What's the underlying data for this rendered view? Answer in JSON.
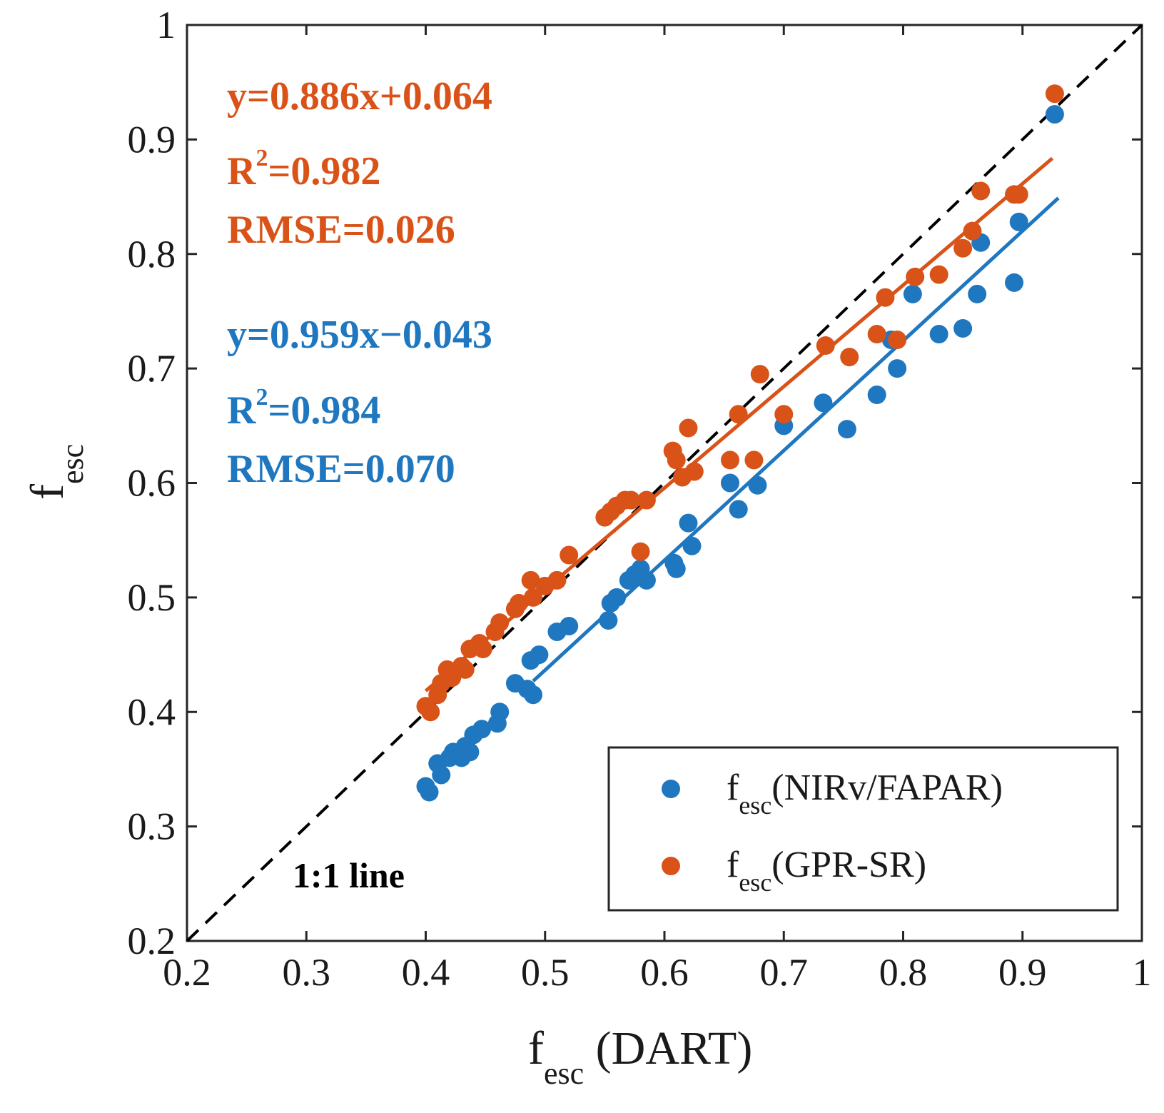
{
  "chart_data": {
    "type": "scatter",
    "xlabel": {
      "main": "f",
      "sub": "esc",
      "suffix": " (DART)"
    },
    "ylabel": {
      "main": "f",
      "sub": "esc"
    },
    "xlim": [
      0.2,
      1.0
    ],
    "ylim": [
      0.2,
      1.0
    ],
    "xticks": [
      0.2,
      0.3,
      0.4,
      0.5,
      0.6,
      0.7,
      0.8,
      0.9,
      1.0
    ],
    "yticks": [
      0.2,
      0.3,
      0.4,
      0.5,
      0.6,
      0.7,
      0.8,
      0.9,
      1.0
    ],
    "xtick_labels": [
      "0.2",
      "0.3",
      "0.4",
      "0.5",
      "0.6",
      "0.7",
      "0.8",
      "0.9",
      "1"
    ],
    "ytick_labels": [
      "0.2",
      "0.3",
      "0.4",
      "0.5",
      "0.6",
      "0.7",
      "0.8",
      "0.9",
      "1"
    ],
    "grid": false,
    "legend_position": "bottom-right",
    "reference_line": {
      "label": "1:1 line",
      "slope": 1,
      "intercept": 0
    },
    "series": [
      {
        "name": "NIRv/FAPAR",
        "legend_main": "f",
        "legend_sub": "esc",
        "legend_suffix": "(NIRv/FAPAR)",
        "color": "#1f77c0",
        "fit": {
          "slope": 0.959,
          "intercept": -0.043,
          "x_range": [
            0.49,
            0.93
          ]
        },
        "stats": {
          "equation": "y=0.959x−0.043",
          "r2_prefix": "R",
          "r2_sup": "2",
          "r2_value": "=0.984",
          "rmse": "RMSE=0.070"
        },
        "points": [
          [
            0.4,
            0.335
          ],
          [
            0.403,
            0.33
          ],
          [
            0.41,
            0.355
          ],
          [
            0.413,
            0.345
          ],
          [
            0.42,
            0.36
          ],
          [
            0.423,
            0.365
          ],
          [
            0.43,
            0.36
          ],
          [
            0.433,
            0.37
          ],
          [
            0.437,
            0.365
          ],
          [
            0.44,
            0.38
          ],
          [
            0.447,
            0.385
          ],
          [
            0.46,
            0.39
          ],
          [
            0.462,
            0.4
          ],
          [
            0.475,
            0.425
          ],
          [
            0.485,
            0.42
          ],
          [
            0.49,
            0.415
          ],
          [
            0.488,
            0.445
          ],
          [
            0.495,
            0.45
          ],
          [
            0.51,
            0.47
          ],
          [
            0.52,
            0.475
          ],
          [
            0.553,
            0.48
          ],
          [
            0.555,
            0.495
          ],
          [
            0.56,
            0.5
          ],
          [
            0.57,
            0.515
          ],
          [
            0.575,
            0.52
          ],
          [
            0.58,
            0.525
          ],
          [
            0.585,
            0.515
          ],
          [
            0.608,
            0.53
          ],
          [
            0.61,
            0.525
          ],
          [
            0.62,
            0.565
          ],
          [
            0.623,
            0.545
          ],
          [
            0.655,
            0.6
          ],
          [
            0.662,
            0.577
          ],
          [
            0.678,
            0.598
          ],
          [
            0.7,
            0.65
          ],
          [
            0.733,
            0.67
          ],
          [
            0.753,
            0.647
          ],
          [
            0.778,
            0.677
          ],
          [
            0.79,
            0.725
          ],
          [
            0.795,
            0.7
          ],
          [
            0.808,
            0.765
          ],
          [
            0.83,
            0.73
          ],
          [
            0.85,
            0.735
          ],
          [
            0.862,
            0.765
          ],
          [
            0.865,
            0.81
          ],
          [
            0.893,
            0.775
          ],
          [
            0.897,
            0.828
          ],
          [
            0.927,
            0.922
          ]
        ]
      },
      {
        "name": "GPR-SR",
        "legend_main": "f",
        "legend_sub": "esc",
        "legend_suffix": "(GPR-SR)",
        "color": "#d95319",
        "fit": {
          "slope": 0.886,
          "intercept": 0.064,
          "x_range": [
            0.4,
            0.925
          ]
        },
        "stats": {
          "equation": "y=0.886x+0.064",
          "r2_prefix": "R",
          "r2_sup": "2",
          "r2_value": "=0.982",
          "rmse": "RMSE=0.026"
        },
        "points": [
          [
            0.4,
            0.405
          ],
          [
            0.404,
            0.4
          ],
          [
            0.41,
            0.415
          ],
          [
            0.413,
            0.425
          ],
          [
            0.418,
            0.437
          ],
          [
            0.422,
            0.43
          ],
          [
            0.43,
            0.44
          ],
          [
            0.433,
            0.437
          ],
          [
            0.437,
            0.455
          ],
          [
            0.445,
            0.46
          ],
          [
            0.448,
            0.455
          ],
          [
            0.458,
            0.47
          ],
          [
            0.462,
            0.478
          ],
          [
            0.475,
            0.49
          ],
          [
            0.478,
            0.495
          ],
          [
            0.488,
            0.515
          ],
          [
            0.49,
            0.5
          ],
          [
            0.5,
            0.51
          ],
          [
            0.51,
            0.515
          ],
          [
            0.52,
            0.537
          ],
          [
            0.55,
            0.57
          ],
          [
            0.555,
            0.575
          ],
          [
            0.56,
            0.58
          ],
          [
            0.567,
            0.585
          ],
          [
            0.572,
            0.585
          ],
          [
            0.58,
            0.54
          ],
          [
            0.585,
            0.585
          ],
          [
            0.607,
            0.628
          ],
          [
            0.61,
            0.62
          ],
          [
            0.615,
            0.605
          ],
          [
            0.62,
            0.648
          ],
          [
            0.625,
            0.61
          ],
          [
            0.655,
            0.62
          ],
          [
            0.662,
            0.66
          ],
          [
            0.675,
            0.62
          ],
          [
            0.68,
            0.695
          ],
          [
            0.7,
            0.66
          ],
          [
            0.735,
            0.72
          ],
          [
            0.755,
            0.71
          ],
          [
            0.778,
            0.73
          ],
          [
            0.785,
            0.762
          ],
          [
            0.795,
            0.725
          ],
          [
            0.81,
            0.78
          ],
          [
            0.83,
            0.782
          ],
          [
            0.85,
            0.805
          ],
          [
            0.858,
            0.82
          ],
          [
            0.865,
            0.855
          ],
          [
            0.893,
            0.852
          ],
          [
            0.897,
            0.852
          ],
          [
            0.927,
            0.94
          ]
        ]
      }
    ]
  }
}
